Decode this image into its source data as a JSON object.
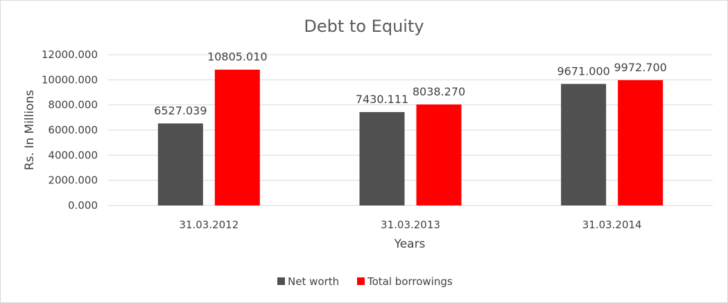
{
  "chart_data": {
    "type": "bar",
    "title": "Debt to Equity",
    "xlabel": "Years",
    "ylabel": "Rs. In Millions",
    "categories": [
      "31.03.2012",
      "31.03.2013",
      "31.03.2014"
    ],
    "series": [
      {
        "name": "Net worth",
        "color": "#505050",
        "values": [
          6527.039,
          7430.111,
          9671.0
        ],
        "labels": [
          "6527.039",
          "7430.111",
          "9671.000"
        ]
      },
      {
        "name": "Total borrowings",
        "color": "#ff0000",
        "values": [
          10805.01,
          8038.27,
          9972.7
        ],
        "labels": [
          "10805.010",
          "8038.270",
          "9972.700"
        ]
      }
    ],
    "ylim": [
      0,
      12000
    ],
    "yticks": [
      0,
      2000,
      4000,
      6000,
      8000,
      10000,
      12000
    ],
    "ytick_labels": [
      "0.000",
      "2000.000",
      "4000.000",
      "6000.000",
      "8000.000",
      "10000.000",
      "12000.000"
    ],
    "grid": true,
    "legend_position": "bottom"
  }
}
